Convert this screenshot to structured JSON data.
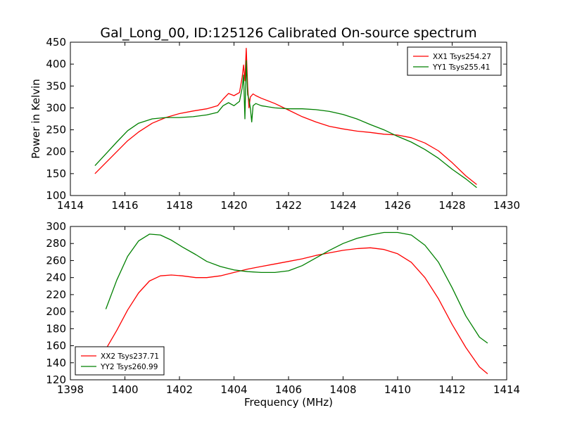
{
  "figure": {
    "title": "Gal_Long_00, ID:125126 Calibrated On-source spectrum",
    "xlabel": "Frequency (MHz)",
    "ylabel": "Power in Kelvin"
  },
  "chart_data": [
    {
      "type": "line",
      "title": "Gal_Long_00, ID:125126 Calibrated On-source spectrum",
      "xlabel": "",
      "ylabel": "Power in Kelvin",
      "xlim": [
        1414,
        1430
      ],
      "ylim": [
        100,
        450
      ],
      "xticks": [
        1414,
        1416,
        1418,
        1420,
        1422,
        1424,
        1426,
        1428,
        1430
      ],
      "yticks": [
        100,
        150,
        200,
        250,
        300,
        350,
        400,
        450
      ],
      "grid": false,
      "legend": "top-right",
      "series": [
        {
          "name": "XX1 Tsys254.27",
          "color": "#ff0000",
          "x": [
            1414.9,
            1415.3,
            1415.7,
            1416.1,
            1416.5,
            1417.0,
            1417.5,
            1418.0,
            1418.5,
            1419.0,
            1419.4,
            1419.6,
            1419.8,
            1420.0,
            1420.2,
            1420.3,
            1420.35,
            1420.4,
            1420.45,
            1420.5,
            1420.55,
            1420.6,
            1420.7,
            1420.8,
            1421.0,
            1421.5,
            1422.0,
            1422.5,
            1423.0,
            1423.5,
            1424.0,
            1424.5,
            1425.0,
            1425.5,
            1426.0,
            1426.5,
            1427.0,
            1427.5,
            1428.0,
            1428.5,
            1428.9
          ],
          "values": [
            150,
            175,
            200,
            225,
            245,
            265,
            278,
            287,
            293,
            298,
            305,
            320,
            333,
            328,
            335,
            370,
            398,
            362,
            436,
            350,
            300,
            325,
            332,
            328,
            322,
            310,
            295,
            280,
            268,
            258,
            252,
            247,
            244,
            240,
            238,
            232,
            220,
            202,
            175,
            145,
            125
          ]
        },
        {
          "name": "YY1 Tsys255.41",
          "color": "#008000",
          "x": [
            1414.9,
            1415.3,
            1415.7,
            1416.1,
            1416.5,
            1417.0,
            1417.5,
            1418.0,
            1418.5,
            1419.0,
            1419.4,
            1419.6,
            1419.8,
            1420.0,
            1420.2,
            1420.3,
            1420.35,
            1420.4,
            1420.45,
            1420.5,
            1420.55,
            1420.6,
            1420.65,
            1420.7,
            1420.8,
            1421.0,
            1421.5,
            1422.0,
            1422.5,
            1423.0,
            1423.5,
            1424.0,
            1424.5,
            1425.0,
            1425.5,
            1426.0,
            1426.5,
            1427.0,
            1427.5,
            1428.0,
            1428.5,
            1428.9
          ],
          "values": [
            168,
            195,
            222,
            248,
            265,
            275,
            278,
            278,
            280,
            284,
            290,
            305,
            312,
            305,
            315,
            345,
            375,
            275,
            408,
            330,
            320,
            300,
            268,
            305,
            310,
            305,
            300,
            298,
            298,
            296,
            292,
            285,
            275,
            262,
            250,
            235,
            222,
            205,
            185,
            160,
            138,
            118
          ]
        }
      ]
    },
    {
      "type": "line",
      "title": "",
      "xlabel": "Frequency (MHz)",
      "ylabel": "",
      "xlim": [
        1398,
        1414
      ],
      "ylim": [
        120,
        300
      ],
      "xticks": [
        1398,
        1400,
        1402,
        1404,
        1406,
        1408,
        1410,
        1412,
        1414
      ],
      "yticks": [
        120,
        140,
        160,
        180,
        200,
        220,
        240,
        260,
        280,
        300
      ],
      "grid": false,
      "legend": "bottom-left",
      "series": [
        {
          "name": "XX2 Tsys237.71",
          "color": "#ff0000",
          "x": [
            1399.3,
            1399.7,
            1400.1,
            1400.5,
            1400.9,
            1401.3,
            1401.7,
            1402.1,
            1402.6,
            1403.0,
            1403.5,
            1404.0,
            1404.5,
            1405.0,
            1405.5,
            1406.0,
            1406.5,
            1407.0,
            1407.5,
            1408.0,
            1408.5,
            1409.0,
            1409.5,
            1410.0,
            1410.5,
            1411.0,
            1411.5,
            1412.0,
            1412.5,
            1413.0,
            1413.3
          ],
          "values": [
            156,
            178,
            202,
            222,
            236,
            242,
            243,
            242,
            240,
            240,
            242,
            246,
            250,
            253,
            256,
            259,
            262,
            266,
            269,
            272,
            274,
            275,
            273,
            268,
            258,
            240,
            215,
            185,
            158,
            135,
            127
          ]
        },
        {
          "name": "YY2 Tsys260.99",
          "color": "#008000",
          "x": [
            1399.3,
            1399.7,
            1400.1,
            1400.5,
            1400.9,
            1401.3,
            1401.7,
            1402.1,
            1402.6,
            1403.0,
            1403.5,
            1404.0,
            1404.5,
            1405.0,
            1405.5,
            1406.0,
            1406.5,
            1407.0,
            1407.5,
            1408.0,
            1408.5,
            1409.0,
            1409.5,
            1410.0,
            1410.5,
            1411.0,
            1411.5,
            1412.0,
            1412.5,
            1413.0,
            1413.3
          ],
          "values": [
            203,
            237,
            265,
            283,
            291,
            290,
            284,
            276,
            267,
            259,
            253,
            249,
            247,
            246,
            246,
            248,
            254,
            263,
            272,
            280,
            286,
            290,
            293,
            293,
            290,
            278,
            258,
            228,
            195,
            170,
            163
          ]
        }
      ]
    }
  ]
}
